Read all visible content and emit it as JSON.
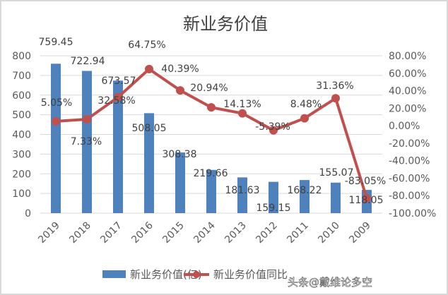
{
  "chart_data": {
    "type": "bar+line",
    "title": "新业务价值",
    "categories": [
      "2019",
      "2018",
      "2017",
      "2016",
      "2015",
      "2014",
      "2013",
      "2012",
      "2011",
      "2010",
      "2009"
    ],
    "series": [
      {
        "name": "新业务价值(亿)",
        "type": "bar",
        "axis": "left",
        "color": "#4f81bd",
        "values": [
          759.45,
          722.94,
          673.57,
          508.05,
          308.38,
          219.66,
          181.63,
          159.15,
          168.22,
          155.07,
          118.05
        ],
        "labels": [
          "759.45",
          "722.94",
          "673.57",
          "508.05",
          "308.38",
          "219.66",
          "181.63",
          "159.15",
          "168.22",
          "155.07",
          "118.05"
        ]
      },
      {
        "name": "新业务价值同比",
        "type": "line",
        "axis": "right",
        "color": "#c0504d",
        "values": [
          5.05,
          7.33,
          32.58,
          64.75,
          40.39,
          20.94,
          14.13,
          -5.39,
          8.48,
          31.36,
          -83.05
        ],
        "labels": [
          "5.05%",
          "7.33%",
          "32.58%",
          "64.75%",
          "40.39%",
          "20.94%",
          "14.13%",
          "-5.39%",
          "8.48%",
          "31.36%",
          "-83.05%"
        ]
      }
    ],
    "y_left": {
      "range": [
        0,
        800
      ],
      "ticks": [
        "0",
        "100",
        "200",
        "300",
        "400",
        "500",
        "600",
        "700",
        "800"
      ]
    },
    "y_right": {
      "range": [
        -100,
        80
      ],
      "ticks": [
        "-100.00%",
        "-80.00%",
        "-60.00%",
        "-40.00%",
        "-20.00%",
        "0.00%",
        "20.00%",
        "40.00%",
        "60.00%",
        "80.00%"
      ]
    },
    "grid": true,
    "legend": "bottom"
  },
  "watermark": "头条@戴维论多空"
}
